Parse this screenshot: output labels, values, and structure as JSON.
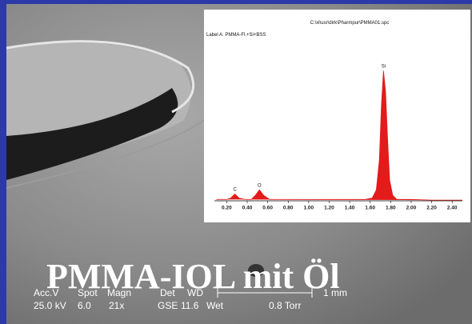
{
  "slide": {
    "title": "PMMA-IOL mit Öl",
    "sem_databar": {
      "headers": [
        "Acc.V",
        "Spot",
        "Magn",
        "Det",
        "WD"
      ],
      "values": [
        "25.0 kV",
        "6.0",
        "21x",
        "GSE",
        "11.6",
        "Wet"
      ],
      "scale": "1 mm",
      "pressure": "0.8 Torr"
    }
  },
  "chart_data": {
    "type": "line",
    "file": "C:\\xl\\usr\\dirk\\Pharmpur\\PMMA01.spc",
    "label": "Label A: PMMA-Fl.+Si+BSS",
    "color": "#e31b1b",
    "x": [
      0.1,
      0.2,
      0.24,
      0.28,
      0.32,
      0.38,
      0.44,
      0.48,
      0.52,
      0.56,
      0.62,
      0.8,
      1.0,
      1.2,
      1.4,
      1.55,
      1.62,
      1.66,
      1.69,
      1.71,
      1.73,
      1.75,
      1.77,
      1.79,
      1.82,
      1.86,
      2.0,
      2.2,
      2.5
    ],
    "values": [
      1,
      1,
      2,
      5,
      2,
      1,
      1,
      4,
      8,
      4,
      1,
      1,
      1,
      1,
      1,
      1,
      2,
      8,
      30,
      70,
      95,
      80,
      45,
      15,
      4,
      1,
      1,
      0.5,
      0.5
    ],
    "annotations": [
      {
        "text": "C",
        "x": 0.28,
        "y": 5
      },
      {
        "text": "O",
        "x": 0.52,
        "y": 8
      },
      {
        "text": "Si",
        "x": 1.73,
        "y": 95
      }
    ],
    "xlim": [
      0.08,
      2.5
    ],
    "ylim": [
      0,
      100
    ],
    "xticks": [
      {
        "value": 0.2,
        "label": "0.20"
      },
      {
        "value": 0.4,
        "label": "0.40"
      },
      {
        "value": 0.6,
        "label": "0.60"
      },
      {
        "value": 0.8,
        "label": "0.80"
      },
      {
        "value": 1.0,
        "label": "1.00"
      },
      {
        "value": 1.2,
        "label": "1.20"
      },
      {
        "value": 1.4,
        "label": "1.40"
      },
      {
        "value": 1.6,
        "label": "1.60"
      },
      {
        "value": 1.8,
        "label": "1.80"
      },
      {
        "value": 2.0,
        "label": "2.00"
      },
      {
        "value": 2.2,
        "label": "2.20"
      },
      {
        "value": 2.4,
        "label": "2.40"
      }
    ]
  }
}
